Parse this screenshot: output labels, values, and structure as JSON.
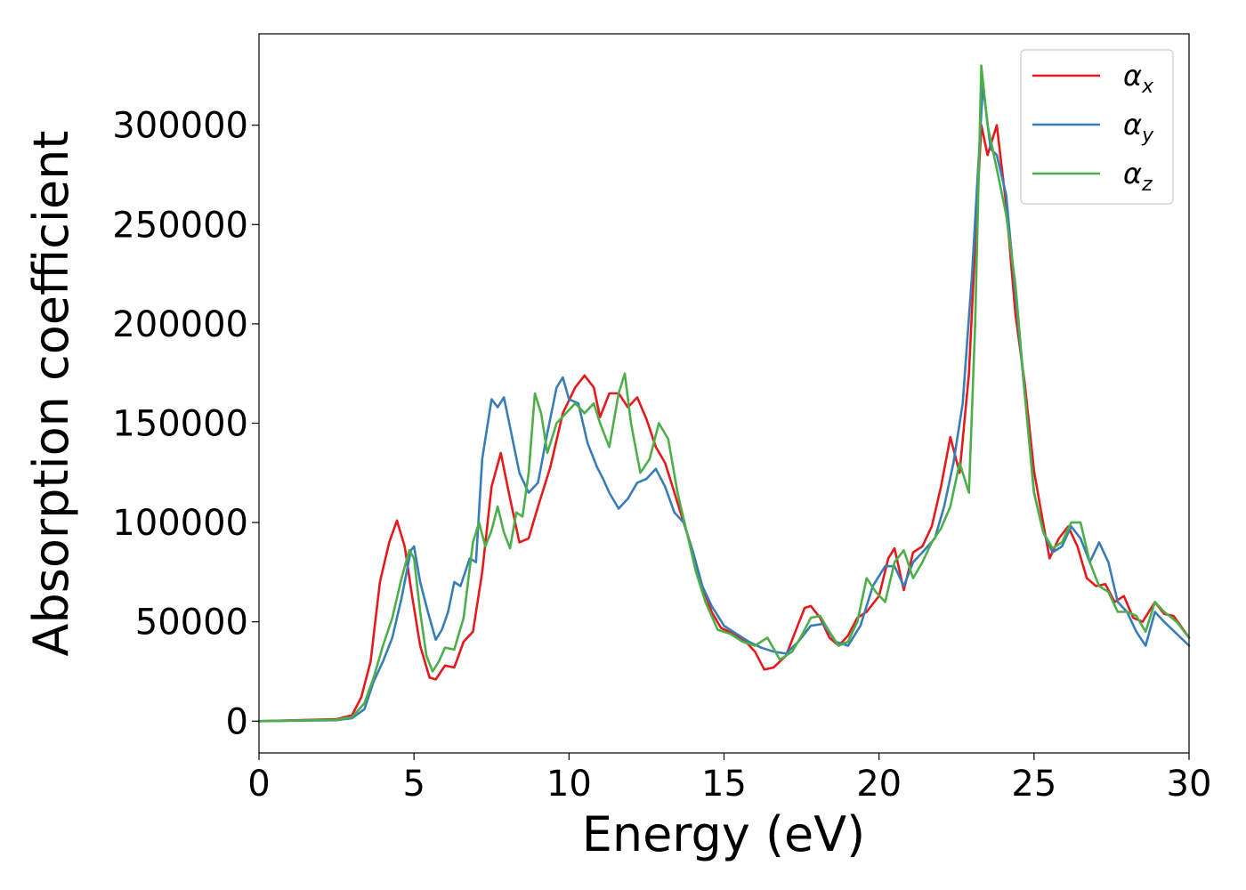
{
  "chart_data": {
    "type": "line",
    "title": "",
    "xlabel": "Energy (eV)",
    "ylabel": "Absorption coefficient",
    "xlim": [
      0,
      30
    ],
    "ylim": [
      -16000,
      346000
    ],
    "xticks": [
      0,
      5,
      10,
      15,
      20,
      25,
      30
    ],
    "yticks": [
      0,
      50000,
      100000,
      150000,
      200000,
      250000,
      300000
    ],
    "grid": false,
    "legend_position": "top-right",
    "series": [
      {
        "name": "α_x",
        "legend_symbol": "α",
        "legend_sub": "x",
        "color": "#e41a1c",
        "x": [
          0,
          2.5,
          3.0,
          3.3,
          3.6,
          3.9,
          4.2,
          4.45,
          4.7,
          4.95,
          5.2,
          5.5,
          5.7,
          6.0,
          6.3,
          6.6,
          6.9,
          7.2,
          7.5,
          7.8,
          8.1,
          8.4,
          8.7,
          9.0,
          9.4,
          9.8,
          10.2,
          10.5,
          10.8,
          11.0,
          11.3,
          11.6,
          11.9,
          12.2,
          12.5,
          12.8,
          13.1,
          13.4,
          13.7,
          14.0,
          14.3,
          14.6,
          14.9,
          15.3,
          15.7,
          16.0,
          16.3,
          16.6,
          17.0,
          17.3,
          17.6,
          17.8,
          18.1,
          18.4,
          18.7,
          19.0,
          19.3,
          19.6,
          20.0,
          20.3,
          20.5,
          20.8,
          21.1,
          21.4,
          21.7,
          22.0,
          22.3,
          22.6,
          22.9,
          23.1,
          23.3,
          23.5,
          23.8,
          24.1,
          24.4,
          24.7,
          25.0,
          25.2,
          25.5,
          25.8,
          26.1,
          26.4,
          26.7,
          27.0,
          27.3,
          27.6,
          27.9,
          28.2,
          28.5,
          28.9,
          29.2,
          29.5,
          30.0
        ],
        "values": [
          0,
          1000,
          3000,
          12000,
          30000,
          70000,
          90000,
          101000,
          88000,
          62000,
          38000,
          22000,
          21000,
          28000,
          27000,
          40000,
          45000,
          75000,
          118000,
          135000,
          112000,
          90000,
          92000,
          108000,
          128000,
          155000,
          168000,
          174000,
          168000,
          153000,
          165000,
          165000,
          158000,
          163000,
          152000,
          138000,
          130000,
          115000,
          100000,
          85000,
          68000,
          55000,
          47000,
          44000,
          40000,
          35000,
          26000,
          27000,
          33000,
          45000,
          57000,
          58000,
          52000,
          42000,
          38000,
          43000,
          52000,
          55000,
          63000,
          82000,
          87000,
          66000,
          85000,
          88000,
          98000,
          118000,
          143000,
          125000,
          175000,
          240000,
          300000,
          285000,
          300000,
          260000,
          205000,
          170000,
          126000,
          108000,
          82000,
          92000,
          98000,
          88000,
          72000,
          68000,
          69000,
          60000,
          63000,
          52000,
          50000,
          60000,
          54000,
          53000,
          42000
        ]
      },
      {
        "name": "α_y",
        "legend_symbol": "α",
        "legend_sub": "y",
        "color": "#377eb8",
        "x": [
          0,
          2.5,
          3.0,
          3.4,
          3.7,
          4.0,
          4.3,
          4.6,
          4.9,
          5.0,
          5.2,
          5.45,
          5.7,
          5.9,
          6.1,
          6.3,
          6.5,
          6.8,
          7.0,
          7.2,
          7.5,
          7.7,
          7.9,
          8.1,
          8.4,
          8.7,
          9.0,
          9.3,
          9.6,
          9.8,
          10.0,
          10.3,
          10.6,
          10.9,
          11.1,
          11.3,
          11.6,
          11.9,
          12.2,
          12.5,
          12.8,
          13.1,
          13.4,
          13.7,
          14.0,
          14.3,
          14.6,
          15.0,
          15.4,
          15.8,
          16.2,
          16.6,
          17.0,
          17.4,
          17.8,
          18.2,
          18.6,
          19.0,
          19.4,
          19.8,
          20.2,
          20.5,
          20.8,
          21.1,
          21.4,
          21.8,
          22.1,
          22.4,
          22.7,
          23.0,
          23.35,
          23.6,
          23.8,
          24.1,
          24.4,
          24.7,
          25.0,
          25.3,
          25.6,
          25.9,
          26.2,
          26.5,
          26.8,
          27.1,
          27.4,
          27.7,
          28.0,
          28.3,
          28.6,
          28.9,
          29.2,
          29.6,
          30.0
        ],
        "values": [
          0,
          500,
          1500,
          6000,
          20000,
          30000,
          42000,
          62000,
          86000,
          88000,
          70000,
          55000,
          41000,
          46000,
          55000,
          70000,
          68000,
          82000,
          80000,
          132000,
          162000,
          158000,
          163000,
          148000,
          125000,
          115000,
          120000,
          145000,
          168000,
          173000,
          162000,
          160000,
          140000,
          128000,
          122000,
          115000,
          107000,
          112000,
          120000,
          122000,
          127000,
          118000,
          105000,
          100000,
          85000,
          68000,
          58000,
          48000,
          44000,
          40000,
          37000,
          35000,
          34000,
          40000,
          48000,
          49000,
          40000,
          38000,
          48000,
          68000,
          78000,
          78000,
          68000,
          80000,
          85000,
          92000,
          108000,
          130000,
          160000,
          225000,
          320000,
          288000,
          285000,
          265000,
          215000,
          165000,
          115000,
          95000,
          85000,
          88000,
          98000,
          92000,
          80000,
          90000,
          80000,
          60000,
          55000,
          45000,
          38000,
          55000,
          50000,
          44000,
          38000
        ]
      },
      {
        "name": "α_z",
        "legend_symbol": "α",
        "legend_sub": "z",
        "color": "#4daf4a",
        "x": [
          0,
          2.5,
          3.0,
          3.4,
          3.7,
          4.0,
          4.3,
          4.6,
          4.85,
          5.0,
          5.2,
          5.4,
          5.6,
          5.8,
          6.0,
          6.3,
          6.6,
          6.9,
          7.1,
          7.3,
          7.5,
          7.7,
          7.9,
          8.1,
          8.3,
          8.5,
          8.7,
          8.9,
          9.1,
          9.3,
          9.6,
          9.9,
          10.2,
          10.5,
          10.8,
          11.0,
          11.3,
          11.6,
          11.8,
          12.0,
          12.3,
          12.6,
          12.9,
          13.2,
          13.5,
          13.8,
          14.1,
          14.4,
          14.8,
          15.2,
          15.6,
          16.0,
          16.4,
          16.8,
          17.2,
          17.5,
          17.8,
          18.1,
          18.4,
          18.7,
          19.0,
          19.3,
          19.6,
          19.9,
          20.2,
          20.5,
          20.8,
          21.1,
          21.4,
          21.7,
          22.0,
          22.3,
          22.6,
          22.9,
          23.1,
          23.3,
          23.5,
          23.8,
          24.1,
          24.4,
          24.7,
          25.0,
          25.3,
          25.6,
          25.9,
          26.2,
          26.5,
          26.8,
          27.1,
          27.4,
          27.7,
          28.0,
          28.3,
          28.6,
          28.9,
          29.2,
          29.6,
          30.0
        ],
        "values": [
          0,
          700,
          2000,
          9000,
          22000,
          38000,
          52000,
          72000,
          86000,
          82000,
          55000,
          33000,
          25000,
          30000,
          37000,
          36000,
          52000,
          90000,
          100000,
          88000,
          96000,
          108000,
          95000,
          87000,
          105000,
          103000,
          125000,
          165000,
          155000,
          135000,
          150000,
          155000,
          160000,
          155000,
          160000,
          150000,
          138000,
          165000,
          175000,
          150000,
          125000,
          132000,
          150000,
          142000,
          115000,
          95000,
          75000,
          60000,
          46000,
          44000,
          40000,
          38000,
          42000,
          31000,
          35000,
          43000,
          52000,
          53000,
          45000,
          38000,
          40000,
          50000,
          72000,
          65000,
          60000,
          80000,
          86000,
          72000,
          80000,
          90000,
          97000,
          108000,
          130000,
          115000,
          200000,
          330000,
          300000,
          278000,
          255000,
          220000,
          165000,
          115000,
          95000,
          87000,
          90000,
          100000,
          100000,
          80000,
          68000,
          65000,
          55000,
          55000,
          53000,
          45000,
          60000,
          55000,
          50000,
          42000
        ]
      }
    ]
  }
}
